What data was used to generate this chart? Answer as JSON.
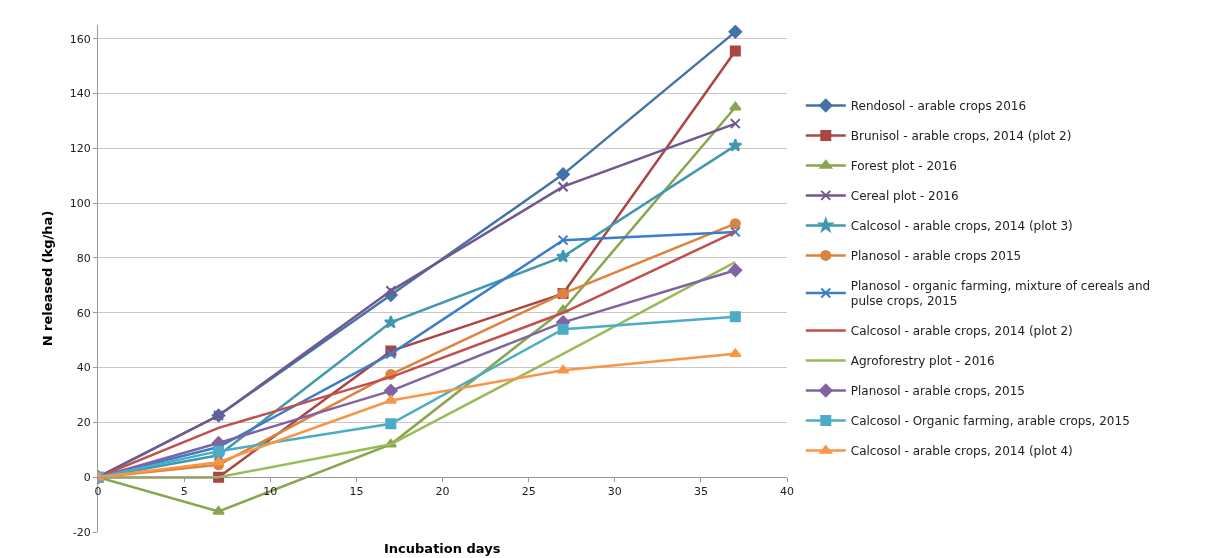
{
  "chart_data": {
    "type": "line",
    "xlabel": "Incubation days",
    "ylabel": "N released (kg/ha)",
    "x": [
      0,
      7,
      17,
      27,
      37
    ],
    "xlim": [
      0,
      40
    ],
    "xticks": [
      0,
      5,
      10,
      15,
      20,
      25,
      30,
      35,
      40
    ],
    "ylim": [
      -20,
      165
    ],
    "yticks": [
      -20,
      0,
      20,
      40,
      60,
      80,
      100,
      120,
      140,
      160
    ],
    "grid": "y",
    "legend": "right",
    "line_style": "solid",
    "series": [
      {
        "name": "Rendosol - arable crops 2016",
        "color": "#4572a7",
        "marker": "diamond",
        "values": [
          0,
          22.5,
          66.5,
          110.5,
          162.5
        ]
      },
      {
        "name": "Brunisol - arable crops, 2014 (plot 2)",
        "color": "#aa4643",
        "marker": "square",
        "values": [
          0,
          0,
          46,
          67,
          155.5
        ]
      },
      {
        "name": "Forest plot - 2016",
        "color": "#89a54e",
        "marker": "triangle",
        "values": [
          0,
          -12.5,
          12,
          61,
          135
        ]
      },
      {
        "name": "Cereal plot - 2016",
        "color": "#71588f",
        "marker": "cross",
        "values": [
          0,
          22.5,
          68,
          106,
          129
        ]
      },
      {
        "name": "Calcosol - arable crops, 2014 (plot 3)",
        "color": "#4198af",
        "marker": "star",
        "values": [
          0,
          8,
          56.5,
          80.5,
          121
        ]
      },
      {
        "name": "Planosol - arable crops 2015",
        "color": "#db843d",
        "marker": "circle",
        "values": [
          0,
          4.5,
          37.5,
          67,
          92.5
        ]
      },
      {
        "name": "Planosol - organic farming, mixture of cereals and pulse crops, 2015",
        "color": "#3d7cc9",
        "marker": "cross",
        "values": [
          0,
          11,
          45,
          86.5,
          89.5
        ]
      },
      {
        "name": "Calcosol - arable crops, 2014 (plot 2)",
        "color": "#c0504d",
        "marker": "none",
        "values": [
          0,
          18,
          36.5,
          60,
          89.5
        ]
      },
      {
        "name": "Agroforestry plot - 2016",
        "color": "#9bbb59",
        "marker": "none",
        "values": [
          0,
          0,
          12,
          45,
          78.5
        ]
      },
      {
        "name": "Planosol - arable crops, 2015",
        "color": "#8064a2",
        "marker": "diamond",
        "values": [
          0,
          12.5,
          31.5,
          56.5,
          75.5
        ]
      },
      {
        "name": "Calcosol - Organic farming, arable crops, 2015",
        "color": "#4bacc6",
        "marker": "square",
        "values": [
          0,
          9.5,
          19.5,
          54,
          58.5
        ]
      },
      {
        "name": "Calcosol - arable crops, 2014 (plot 4)",
        "color": "#f79646",
        "marker": "triangle",
        "values": [
          0,
          5.5,
          28,
          39,
          45
        ]
      }
    ]
  }
}
